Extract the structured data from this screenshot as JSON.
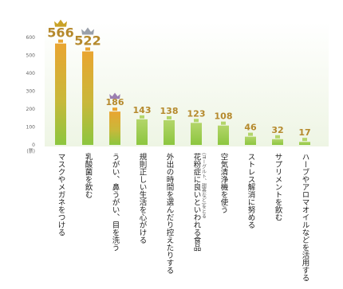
{
  "chart_data": {
    "type": "bar",
    "title": "",
    "xlabel": "",
    "ylabel": "",
    "unit_label": "(票)",
    "ylim": [
      0,
      650
    ],
    "yticks": [
      0,
      100,
      200,
      300,
      400,
      500,
      600
    ],
    "grid": false,
    "categories": [
      "マスクやメガネをつける",
      "乳酸菌を飲む",
      "うがい、鼻うがい、目を洗う",
      "規則正しい生活を心がける",
      "外出の時間を選んだり控えたりする",
      "花粉症に良いといわれる食品",
      "空気清浄機を使う",
      "ストレス解消に努める",
      "サプリメントを飲む",
      "ハーブやアロマオイルなどを活用する"
    ],
    "category_notes": [
      "",
      "",
      "",
      "",
      "",
      "(ヨーグルト、甜茶など)をとる",
      "",
      "",
      "",
      ""
    ],
    "values": [
      566,
      522,
      186,
      143,
      138,
      123,
      108,
      46,
      32,
      17
    ],
    "value_labels": [
      "566",
      "522",
      "186",
      "143",
      "138",
      "123",
      "108",
      "46",
      "32",
      "17"
    ],
    "crowned": [
      true,
      true,
      true,
      false,
      false,
      false,
      false,
      false,
      false,
      false
    ],
    "colors": {
      "bar_top_gold": "#e9a531",
      "bar_bottom_green": "#8cc63f",
      "bar_green_top": "#b3d56a",
      "value_label": "#b5892c",
      "crown_gold": "#c9a227",
      "crown_silver": "#9aa0aa",
      "crown_bronze": "#9b7fb0",
      "plot_band": "#eef5e4"
    }
  }
}
